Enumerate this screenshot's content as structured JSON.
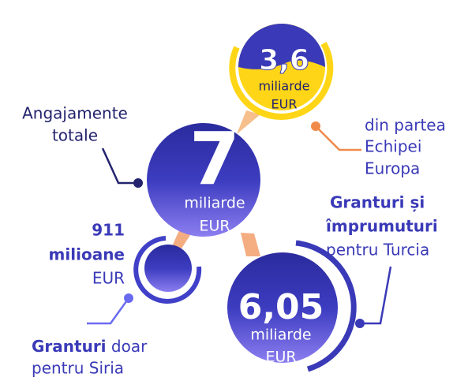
{
  "total": {
    "label": [
      "Angajamente",
      "totale"
    ],
    "value": "7",
    "unit": [
      "miliarde",
      "EUR"
    ]
  },
  "team_europe": {
    "value": "3,6",
    "unit": [
      "miliarde",
      "EUR"
    ],
    "label": [
      "din partea",
      "Echipei",
      "Europa"
    ]
  },
  "syria": {
    "value": "911",
    "unit": [
      "milioane",
      "EUR"
    ],
    "label_bold": "Granturi",
    "label_rest": [
      "doar",
      "pentru Siria"
    ]
  },
  "turkey": {
    "value": "6,05",
    "unit": [
      "miliarde",
      "EUR"
    ],
    "label_bold": [
      "Granturi și",
      "împrumuturi"
    ],
    "label_rest": "pentru Turcia"
  }
}
